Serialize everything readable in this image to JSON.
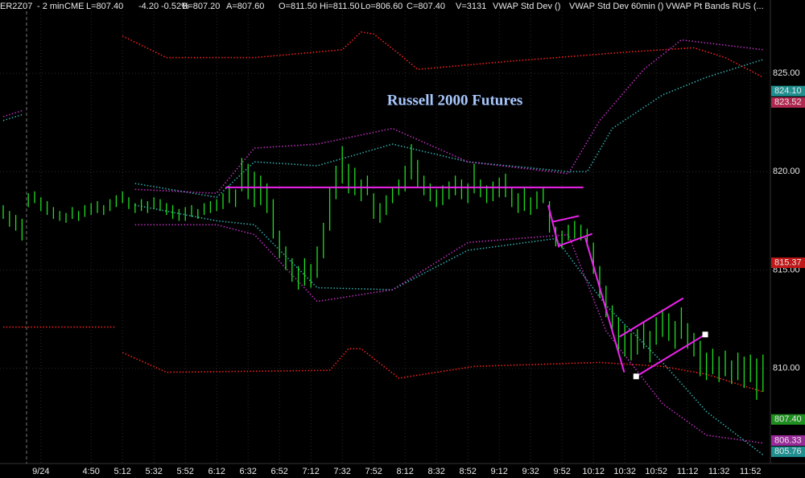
{
  "chart_data": {
    "type": "ohlc",
    "title": "Russell 2000 Futures",
    "header": [
      {
        "text": "ER2Z07",
        "color": "#00ff00"
      },
      {
        "text": "- 2 min",
        "color": "#ffffff"
      },
      {
        "text": "CME",
        "color": "#ffffff"
      },
      {
        "text": "L=807.40",
        "color": "#ff3030"
      },
      {
        "text": "-4.20",
        "color": "#ff3030"
      },
      {
        "text": "-0.52%",
        "color": "#ff3030"
      },
      {
        "text": "B=807.20",
        "color": "#ffffff"
      },
      {
        "text": "A=807.60",
        "color": "#ffffff"
      },
      {
        "text": "O=811.50",
        "color": "#ff3030"
      },
      {
        "text": "Hi=811.50",
        "color": "#ffffff"
      },
      {
        "text": "Lo=806.60",
        "color": "#ffffff"
      },
      {
        "text": "C=807.40",
        "color": "#ff3030"
      },
      {
        "text": "V=3131",
        "color": "#ffffff"
      },
      {
        "text": "VWAP Std Dev  ()",
        "color": "#ffffff"
      },
      {
        "text": "VWAP Std Dev 60min  ()",
        "color": "#ffffff"
      },
      {
        "text": "VWAP Pt Bands RUS  (...",
        "color": "#ffffff"
      }
    ],
    "categories": [
      null,
      null,
      null,
      null,
      null,
      null,
      "9/24",
      null,
      null,
      null,
      null,
      null,
      null,
      null,
      "4:50",
      null,
      null,
      null,
      null,
      "5:12",
      null,
      null,
      null,
      null,
      "5:32",
      null,
      null,
      null,
      null,
      "5:52",
      null,
      null,
      null,
      null,
      "6:12",
      null,
      null,
      null,
      null,
      "6:32",
      null,
      null,
      null,
      null,
      "6:52",
      null,
      null,
      null,
      null,
      "7:12",
      null,
      null,
      null,
      null,
      "7:32",
      null,
      null,
      null,
      null,
      "7:52",
      null,
      null,
      null,
      null,
      "8:12",
      null,
      null,
      null,
      null,
      "8:32",
      null,
      null,
      null,
      null,
      "8:52",
      null,
      null,
      null,
      null,
      "9:12",
      null,
      null,
      null,
      null,
      "9:32",
      null,
      null,
      null,
      null,
      "9:52",
      null,
      null,
      null,
      null,
      "10:12",
      null,
      null,
      null,
      null,
      "10:32",
      null,
      null,
      null,
      null,
      "10:52",
      null,
      null,
      null,
      null,
      "11:12",
      null,
      null,
      null,
      null,
      "11:32",
      null,
      null,
      null,
      null,
      "11:52",
      null,
      null
    ],
    "high": [
      818.3,
      818.0,
      817.8,
      817.6,
      818.9,
      819.0,
      818.7,
      818.5,
      818.2,
      818.0,
      817.9,
      818.2,
      818.0,
      818.3,
      818.4,
      818.5,
      818.3,
      818.6,
      818.8,
      819.0,
      818.7,
      818.4,
      818.6,
      818.5,
      818.7,
      818.6,
      818.4,
      818.3,
      818.1,
      818.2,
      818.3,
      818.1,
      818.4,
      818.5,
      818.6,
      818.9,
      819.3,
      819.1,
      820.7,
      820.4,
      820.0,
      819.8,
      819.4,
      818.6,
      817.0,
      816.2,
      815.6,
      815.2,
      815.6,
      815.3,
      816.2,
      817.4,
      819.2,
      820.3,
      821.3,
      820.4,
      820.2,
      819.6,
      819.8,
      818.9,
      818.4,
      818.8,
      819.2,
      819.6,
      820.3,
      821.4,
      820.6,
      819.8,
      819.4,
      819.1,
      819.3,
      819.5,
      819.8,
      819.6,
      819.4,
      820.4,
      819.6,
      819.3,
      819.5,
      819.7,
      819.9,
      819.2,
      818.9,
      819.2,
      818.7,
      819.0,
      819.2,
      818.5,
      817.2,
      817.0,
      817.3,
      817.5,
      817.3,
      817.1,
      816.4,
      815.2,
      814.2,
      813.2,
      812.6,
      812.2,
      811.8,
      812.0,
      812.4,
      811.9,
      812.6,
      813.0,
      812.8,
      812.4,
      813.1,
      812.3,
      811.8,
      811.4,
      810.8,
      811.0,
      810.6,
      810.9,
      810.4,
      810.8,
      810.6,
      810.7,
      810.5,
      810.7
    ],
    "low": [
      817.6,
      817.2,
      817.0,
      816.5,
      818.2,
      818.4,
      818.0,
      817.8,
      817.6,
      817.5,
      817.4,
      817.6,
      817.5,
      817.7,
      817.8,
      817.9,
      817.8,
      818.0,
      818.2,
      818.4,
      818.1,
      817.9,
      818.0,
      817.9,
      818.1,
      818.0,
      817.8,
      817.6,
      817.5,
      817.5,
      817.7,
      817.6,
      817.8,
      817.9,
      818.0,
      818.1,
      818.4,
      818.2,
      819.0,
      818.6,
      818.2,
      818.3,
      817.9,
      816.6,
      815.6,
      815.0,
      814.4,
      814.0,
      814.2,
      814.1,
      814.6,
      815.6,
      817.0,
      818.6,
      819.4,
      818.9,
      818.8,
      818.5,
      818.8,
      817.6,
      817.4,
      817.8,
      818.4,
      818.8,
      819.0,
      819.6,
      819.2,
      818.8,
      818.5,
      818.2,
      818.3,
      818.6,
      818.8,
      818.6,
      818.4,
      818.9,
      818.7,
      818.4,
      818.5,
      818.7,
      818.7,
      818.2,
      817.9,
      818.0,
      817.8,
      818.1,
      818.4,
      816.9,
      816.2,
      816.1,
      816.5,
      816.6,
      816.5,
      816.2,
      814.8,
      813.6,
      812.6,
      811.9,
      810.9,
      810.6,
      810.4,
      810.7,
      811.0,
      810.3,
      811.2,
      811.6,
      811.4,
      811.0,
      811.5,
      811.0,
      810.6,
      809.6,
      809.4,
      809.7,
      809.3,
      809.6,
      809.2,
      809.4,
      809.0,
      809.3,
      808.4,
      808.8
    ],
    "color": "#22dd22",
    "bands": [
      {
        "color": "#ff2020",
        "x": [
          19,
          26,
          40,
          54,
          57,
          59,
          63,
          66,
          80,
          100,
          110,
          115,
          121
        ],
        "values": [
          826.9,
          825.8,
          825.8,
          826.2,
          827.1,
          827.0,
          826.0,
          825.2,
          825.6,
          826.1,
          826.3,
          825.8,
          824.8
        ]
      },
      {
        "color": "#ff2020",
        "x": [
          0,
          18,
          18.5,
          19,
          26,
          52,
          55,
          57,
          63,
          75,
          95,
          105,
          112,
          121
        ],
        "values": [
          812.1,
          812.1,
          null,
          810.8,
          809.8,
          809.9,
          811.0,
          811.0,
          809.5,
          810.1,
          810.3,
          810.1,
          809.7,
          808.8
        ]
      },
      {
        "color": "#33b0b0",
        "x": [
          0,
          3,
          3.5,
          21,
          34,
          40,
          50,
          62,
          74,
          90,
          93,
          97,
          105,
          112,
          121
        ],
        "values": [
          822.6,
          822.9,
          null,
          819.4,
          818.7,
          820.5,
          820.3,
          821.4,
          820.5,
          820.0,
          820.0,
          822.2,
          823.9,
          824.8,
          825.7
        ]
      },
      {
        "color": "#33b0b0",
        "x": [
          21,
          34,
          40,
          50,
          62,
          74,
          88,
          96,
          105,
          112,
          121
        ],
        "values": [
          818.3,
          817.5,
          817.3,
          814.1,
          814.0,
          816.0,
          816.6,
          813.2,
          810.3,
          807.8,
          805.6
        ]
      },
      {
        "color": "#c030c0",
        "x": [
          0,
          3,
          3.5,
          21,
          34,
          40,
          50,
          62,
          74,
          90,
          95,
          102,
          108,
          121
        ],
        "values": [
          822.8,
          823.1,
          null,
          819.1,
          818.9,
          821.2,
          821.4,
          822.2,
          820.5,
          819.9,
          822.6,
          825.2,
          826.7,
          826.2
        ]
      },
      {
        "color": "#c030c0",
        "x": [
          21,
          34,
          40,
          50,
          62,
          74,
          90,
          96,
          105,
          112,
          121
        ],
        "values": [
          817.3,
          817.3,
          816.8,
          813.4,
          814.0,
          816.4,
          816.8,
          811.9,
          808.2,
          806.6,
          806.2
        ]
      }
    ],
    "drawings": [
      {
        "x": [
          35.4,
          92.4
        ],
        "values": [
          819.2,
          819.2
        ]
      },
      {
        "x": [
          86.8,
          88.5
        ],
        "values": [
          818.3,
          816.15
        ]
      },
      {
        "x": [
          87.6,
          91.7
        ],
        "values": [
          817.46,
          817.75
        ]
      },
      {
        "x": [
          88.5,
          93.8
        ],
        "values": [
          816.23,
          816.84
        ]
      },
      {
        "x": [
          92.7,
          98.9
        ],
        "values": [
          816.64,
          809.8
        ]
      },
      {
        "x": [
          98.1,
          108.3
        ],
        "values": [
          811.6,
          813.57
        ]
      },
      {
        "x": [
          100.8,
          111.8
        ],
        "values": [
          809.59,
          811.72
        ],
        "endpoints": true
      }
    ],
    "drawing_color": "#ee22ee",
    "ylim": [
      805.16,
      828.73
    ],
    "yticks": [
      {
        "value": 810,
        "label": "810.00"
      },
      {
        "value": 815,
        "label": "815.00"
      },
      {
        "value": 820,
        "label": "820.00"
      },
      {
        "value": 825,
        "label": "825.00"
      }
    ],
    "price_tags": [
      {
        "value": 824.1,
        "label": "824.10",
        "color": "#1f8f8f"
      },
      {
        "value": 823.52,
        "label": "823.52",
        "color": "#b02850"
      },
      {
        "value": 815.37,
        "label": "815.37",
        "color": "#c01818"
      },
      {
        "value": 807.4,
        "label": "807.40",
        "color": "#1f8f1f"
      },
      {
        "value": 806.33,
        "label": "806.33",
        "color": "#9a2a9a"
      },
      {
        "value": 805.76,
        "label": "805.76",
        "color": "#1f8f8f"
      }
    ],
    "grid": true
  }
}
